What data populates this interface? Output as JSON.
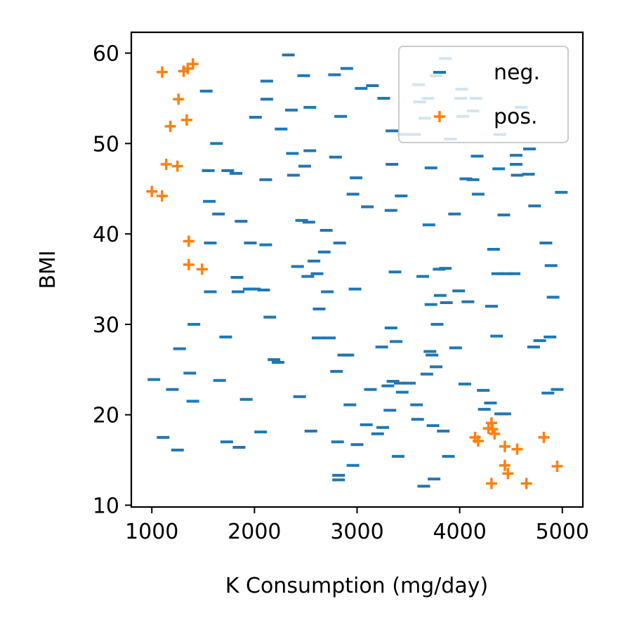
{
  "chart_data": {
    "type": "scatter",
    "title": "",
    "xlabel": "K Consumption (mg/day)",
    "ylabel": "BMI",
    "xlim": [
      800,
      5200
    ],
    "ylim": [
      9.8,
      62.3
    ],
    "xticks": [
      1000,
      2000,
      3000,
      4000,
      5000
    ],
    "yticks": [
      10,
      20,
      30,
      40,
      50,
      60
    ],
    "xtick_labels": [
      "1000",
      "2000",
      "3000",
      "4000",
      "5000"
    ],
    "ytick_labels": [
      "10",
      "20",
      "30",
      "40",
      "50",
      "60"
    ],
    "grid": false,
    "legend_position": "top-right",
    "series": [
      {
        "name": "neg.",
        "marker": "_",
        "color": "#1f77b4",
        "points": [
          [
            1020,
            23.9
          ],
          [
            1110,
            17.5
          ],
          [
            1200,
            22.8
          ],
          [
            1250,
            16.1
          ],
          [
            1270,
            27.3
          ],
          [
            1370,
            24.6
          ],
          [
            1400,
            21.5
          ],
          [
            1410,
            30.0
          ],
          [
            1530,
            55.8
          ],
          [
            1550,
            47.0
          ],
          [
            1560,
            43.6
          ],
          [
            1570,
            39.0
          ],
          [
            1570,
            33.6
          ],
          [
            1630,
            50.0
          ],
          [
            1650,
            42.2
          ],
          [
            1660,
            23.8
          ],
          [
            1720,
            28.6
          ],
          [
            1730,
            17.0
          ],
          [
            1740,
            47.0
          ],
          [
            1820,
            46.7
          ],
          [
            1830,
            35.2
          ],
          [
            1840,
            33.6
          ],
          [
            1850,
            16.4
          ],
          [
            1870,
            41.4
          ],
          [
            1920,
            21.7
          ],
          [
            1950,
            33.9
          ],
          [
            1960,
            39.0
          ],
          [
            2000,
            33.9
          ],
          [
            2010,
            52.9
          ],
          [
            2060,
            18.1
          ],
          [
            2090,
            33.8
          ],
          [
            2110,
            38.8
          ],
          [
            2110,
            46.0
          ],
          [
            2120,
            56.9
          ],
          [
            2120,
            54.9
          ],
          [
            2150,
            30.8
          ],
          [
            2190,
            26.1
          ],
          [
            2230,
            25.8
          ],
          [
            2260,
            51.6
          ],
          [
            2330,
            59.8
          ],
          [
            2360,
            53.7
          ],
          [
            2370,
            48.9
          ],
          [
            2380,
            46.5
          ],
          [
            2420,
            36.4
          ],
          [
            2440,
            22.0
          ],
          [
            2460,
            41.5
          ],
          [
            2480,
            57.5
          ],
          [
            2490,
            47.5
          ],
          [
            2520,
            35.3
          ],
          [
            2530,
            41.3
          ],
          [
            2540,
            49.2
          ],
          [
            2540,
            54.0
          ],
          [
            2550,
            18.2
          ],
          [
            2580,
            37.0
          ],
          [
            2610,
            35.6
          ],
          [
            2620,
            28.5
          ],
          [
            2630,
            31.7
          ],
          [
            2680,
            38.0
          ],
          [
            2700,
            40.4
          ],
          [
            2710,
            33.6
          ],
          [
            2730,
            28.5
          ],
          [
            2780,
            57.6
          ],
          [
            2790,
            48.5
          ],
          [
            2800,
            24.8
          ],
          [
            2810,
            17.0
          ],
          [
            2820,
            13.3
          ],
          [
            2820,
            12.8
          ],
          [
            2830,
            39.0
          ],
          [
            2840,
            53.0
          ],
          [
            2870,
            26.6
          ],
          [
            2900,
            58.3
          ],
          [
            2910,
            26.6
          ],
          [
            2930,
            21.1
          ],
          [
            2960,
            44.4
          ],
          [
            2960,
            14.4
          ],
          [
            2980,
            33.9
          ],
          [
            2990,
            46.2
          ],
          [
            3000,
            16.7
          ],
          [
            3040,
            56.1
          ],
          [
            3090,
            18.9
          ],
          [
            3100,
            43.0
          ],
          [
            3130,
            22.8
          ],
          [
            3150,
            56.4
          ],
          [
            3200,
            17.9
          ],
          [
            3240,
            27.5
          ],
          [
            3250,
            18.6
          ],
          [
            3260,
            55.0
          ],
          [
            3300,
            23.2
          ],
          [
            3320,
            20.5
          ],
          [
            3330,
            29.6
          ],
          [
            3330,
            42.6
          ],
          [
            3340,
            47.7
          ],
          [
            3340,
            51.4
          ],
          [
            3350,
            23.7
          ],
          [
            3370,
            35.8
          ],
          [
            3380,
            28.1
          ],
          [
            3400,
            15.4
          ],
          [
            3420,
            23.5
          ],
          [
            3430,
            44.2
          ],
          [
            3440,
            22.5
          ],
          [
            3460,
            51.0
          ],
          [
            3510,
            23.5
          ],
          [
            3560,
            51.0
          ],
          [
            3580,
            21.1
          ],
          [
            3590,
            19.5
          ],
          [
            3600,
            56.5
          ],
          [
            3610,
            54.6
          ],
          [
            3640,
            35.3
          ],
          [
            3650,
            12.1
          ],
          [
            3660,
            52.8
          ],
          [
            3680,
            24.5
          ],
          [
            3690,
            55.0
          ],
          [
            3700,
            41.0
          ],
          [
            3710,
            27.0
          ],
          [
            3720,
            47.3
          ],
          [
            3720,
            32.2
          ],
          [
            3730,
            26.6
          ],
          [
            3740,
            18.8
          ],
          [
            3750,
            12.9
          ],
          [
            3770,
            25.3
          ],
          [
            3770,
            57.5
          ],
          [
            3780,
            30.0
          ],
          [
            3800,
            36.1
          ],
          [
            3810,
            33.2
          ],
          [
            3840,
            18.2
          ],
          [
            3860,
            36.2
          ],
          [
            3860,
            59.4
          ],
          [
            3870,
            32.4
          ],
          [
            3890,
            15.4
          ],
          [
            3910,
            50.5
          ],
          [
            3950,
            42.2
          ],
          [
            3960,
            27.4
          ],
          [
            3990,
            33.7
          ],
          [
            4010,
            55.0
          ],
          [
            4020,
            56.0
          ],
          [
            4030,
            53.0
          ],
          [
            4050,
            23.4
          ],
          [
            4060,
            46.1
          ],
          [
            4080,
            32.5
          ],
          [
            4130,
            46.0
          ],
          [
            4130,
            53.6
          ],
          [
            4160,
            55.0
          ],
          [
            4170,
            48.6
          ],
          [
            4180,
            44.4
          ],
          [
            4230,
            22.7
          ],
          [
            4240,
            20.6
          ],
          [
            4300,
            21.3
          ],
          [
            4310,
            32.0
          ],
          [
            4330,
            38.3
          ],
          [
            4360,
            28.7
          ],
          [
            4370,
            35.6
          ],
          [
            4380,
            47.2
          ],
          [
            4390,
            51.0
          ],
          [
            4400,
            20.1
          ],
          [
            4430,
            42.1
          ],
          [
            4440,
            20.1
          ],
          [
            4460,
            35.6
          ],
          [
            4530,
            35.6
          ],
          [
            4550,
            48.7
          ],
          [
            4550,
            47.7
          ],
          [
            4560,
            46.5
          ],
          [
            4600,
            54.0
          ],
          [
            4670,
            46.6
          ],
          [
            4680,
            49.4
          ],
          [
            4720,
            27.5
          ],
          [
            4730,
            43.1
          ],
          [
            4780,
            28.2
          ],
          [
            4840,
            39.0
          ],
          [
            4860,
            22.4
          ],
          [
            4880,
            28.6
          ],
          [
            4890,
            36.5
          ],
          [
            4910,
            33.0
          ],
          [
            4950,
            22.8
          ],
          [
            4990,
            44.6
          ]
        ]
      },
      {
        "name": "pos.",
        "marker": "+",
        "color": "#ff7f0e",
        "points": [
          [
            1000,
            44.7
          ],
          [
            1100,
            44.2
          ],
          [
            1100,
            57.9
          ],
          [
            1140,
            47.7
          ],
          [
            1180,
            51.9
          ],
          [
            1250,
            47.5
          ],
          [
            1260,
            54.9
          ],
          [
            1310,
            58.0
          ],
          [
            1340,
            52.6
          ],
          [
            1350,
            58.3
          ],
          [
            1360,
            39.2
          ],
          [
            1360,
            36.6
          ],
          [
            1400,
            58.8
          ],
          [
            1490,
            36.1
          ],
          [
            4150,
            17.5
          ],
          [
            4180,
            17.1
          ],
          [
            4280,
            18.5
          ],
          [
            4310,
            19.1
          ],
          [
            4320,
            18.4
          ],
          [
            4340,
            17.9
          ],
          [
            4440,
            16.5
          ],
          [
            4440,
            14.4
          ],
          [
            4470,
            13.5
          ],
          [
            4560,
            16.2
          ],
          [
            4650,
            12.4
          ],
          [
            4310,
            12.4
          ],
          [
            4820,
            17.5
          ],
          [
            4950,
            14.3
          ]
        ]
      }
    ]
  }
}
